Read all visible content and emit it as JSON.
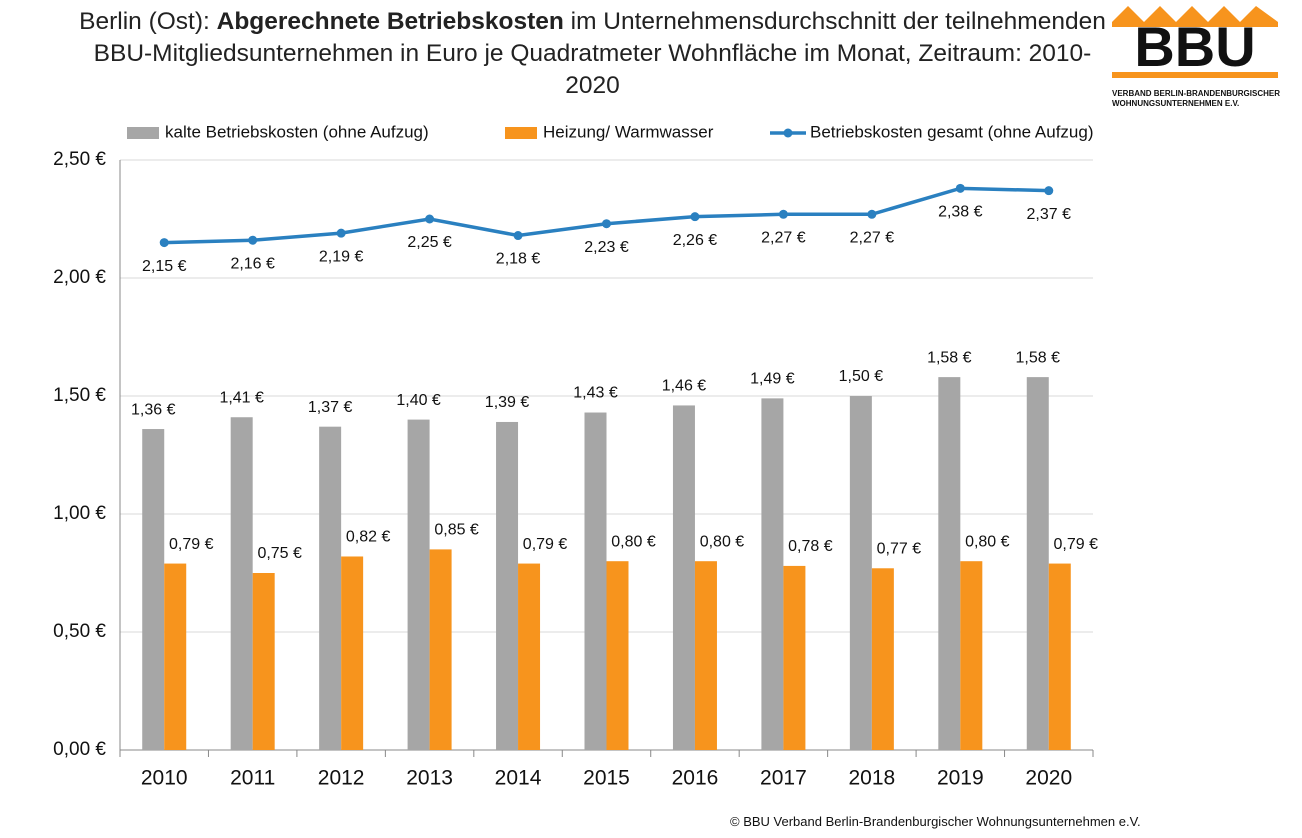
{
  "chart_data": {
    "type": "bar-line",
    "title": [
      "Berlin (Ost): ",
      "Abgerechnete Betriebskosten",
      " im Unternehmensdurchschnitt der teilnehmenden BBU-Mitgliedsunternehmen in Euro je Quadratmeter Wohnfläche im Monat, Zeitraum: 2010-2020"
    ],
    "title_bold": [
      false,
      true,
      false
    ],
    "logo": {
      "text": "BBU",
      "caption": [
        "VERBAND BERLIN-BRANDENBURGISCHER",
        "WOHNUNGSUNTERNEHMEN E.V."
      ]
    },
    "footer": "© BBU Verband Berlin-Brandenburgischer Wohnungsunternehmen e.V.",
    "categories": [
      "2010",
      "2011",
      "2012",
      "2013",
      "2014",
      "2015",
      "2016",
      "2017",
      "2018",
      "2019",
      "2020"
    ],
    "series": [
      {
        "name": "kalte Betriebskosten (ohne Aufzug)",
        "type": "bar",
        "color": "#a6a6a6",
        "values": [
          1.36,
          1.41,
          1.37,
          1.4,
          1.39,
          1.43,
          1.46,
          1.49,
          1.5,
          1.58,
          1.58
        ],
        "value_labels": [
          "1,36 €",
          "1,41 €",
          "1,37 €",
          "1,40 €",
          "1,39 €",
          "1,43 €",
          "1,46 €",
          "1,49 €",
          "1,50 €",
          "1,58 €",
          "1,58 €"
        ]
      },
      {
        "name": "Heizung/ Warmwasser",
        "type": "bar",
        "color": "#f7941d",
        "values": [
          0.79,
          0.75,
          0.82,
          0.85,
          0.79,
          0.8,
          0.8,
          0.78,
          0.77,
          0.8,
          0.79
        ],
        "value_labels": [
          "0,79 €",
          "0,75 €",
          "0,82 €",
          "0,85 €",
          "0,79 €",
          "0,80 €",
          "0,80 €",
          "0,78 €",
          "0,77 €",
          "0,80 €",
          "0,79 €"
        ]
      },
      {
        "name": "Betriebskosten gesamt (ohne Aufzug)",
        "type": "line",
        "color": "#2a80c0",
        "values": [
          2.15,
          2.16,
          2.19,
          2.25,
          2.18,
          2.23,
          2.26,
          2.27,
          2.27,
          2.38,
          2.37
        ],
        "value_labels": [
          "2,15 €",
          "2,16 €",
          "2,19 €",
          "2,25 €",
          "2,18 €",
          "2,23 €",
          "2,26 €",
          "2,27 €",
          "2,27 €",
          "2,38 €",
          "2,37 €"
        ]
      }
    ],
    "ylim": [
      0,
      2.5
    ],
    "yticks": [
      {
        "value": 0,
        "label": "0,00 €"
      },
      {
        "value": 0.5,
        "label": "0,50 €"
      },
      {
        "value": 1,
        "label": "1,00 €"
      },
      {
        "value": 1.5,
        "label": "1,50 €"
      },
      {
        "value": 2,
        "label": "2,00 €"
      },
      {
        "value": 2.5,
        "label": "2,50 €"
      }
    ],
    "grid": true,
    "legend": "top"
  }
}
